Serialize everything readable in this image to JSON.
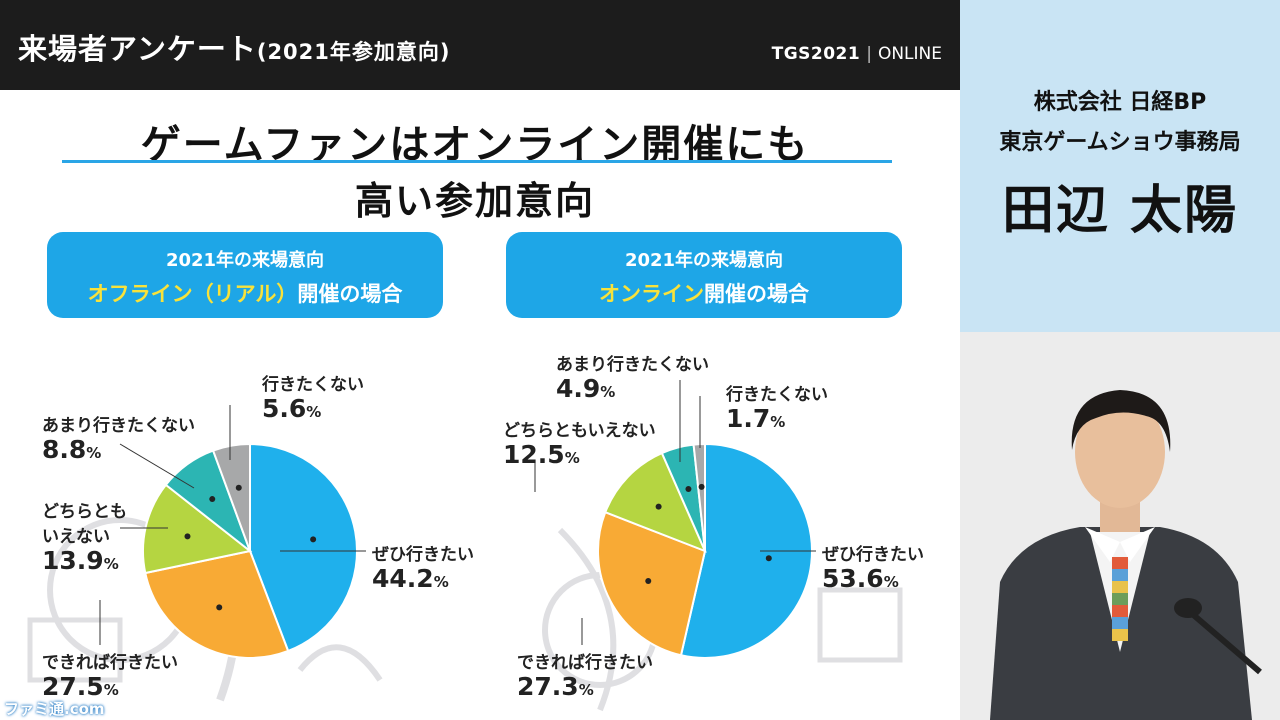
{
  "header": {
    "title": "来場者アンケート",
    "subtitle": "(2021年参加意向)",
    "brand": "TGS2021",
    "separator": "|",
    "brand_suffix": "ONLINE"
  },
  "headline": {
    "line1": "ゲームファンはオンライン開催にも",
    "line2": "高い参加意向"
  },
  "badges": {
    "left": {
      "line1": "2021年の来場意向",
      "line2_highlight": "オフライン（リアル）",
      "line2_rest": "開催の場合"
    },
    "right": {
      "line1": "2021年の来場意向",
      "line2_highlight": "オンライン",
      "line2_rest": "開催の場合"
    }
  },
  "colors": {
    "header_bg": "#1c1c1c",
    "accent_blue": "#1ea6e7",
    "highlight_yellow": "#f9e23a",
    "slice_blue": "#1fb0ec",
    "slice_orange": "#f8aa35",
    "slice_lime": "#b5d541",
    "slice_teal": "#2cb5b3",
    "slice_gray": "#a7a8a9",
    "nameplate_bg": "#c9e4f4"
  },
  "chart_data": [
    {
      "type": "pie",
      "title": "2021年の来場意向 オフライン（リアル）開催の場合",
      "slices": [
        {
          "label": "ぜひ行きたい",
          "value": 44.2,
          "display": "44.2",
          "color": "#1fb0ec"
        },
        {
          "label": "できれば行きたい",
          "value": 27.5,
          "display": "27.5",
          "color": "#f8aa35"
        },
        {
          "label": "どちらとも いえない",
          "label_lines": [
            "どちらとも",
            "いえない"
          ],
          "value": 13.9,
          "display": "13.9",
          "color": "#b5d541"
        },
        {
          "label": "あまり行きたくない",
          "value": 8.8,
          "display": "8.8",
          "color": "#2cb5b3"
        },
        {
          "label": "行きたくない",
          "value": 5.6,
          "display": "5.6",
          "color": "#a7a8a9"
        }
      ],
      "unit": "%"
    },
    {
      "type": "pie",
      "title": "2021年の来場意向 オンライン開催の場合",
      "slices": [
        {
          "label": "ぜひ行きたい",
          "value": 53.6,
          "display": "53.6",
          "color": "#1fb0ec"
        },
        {
          "label": "できれば行きたい",
          "value": 27.3,
          "display": "27.3",
          "color": "#f8aa35"
        },
        {
          "label": "どちらともいえない",
          "value": 12.5,
          "display": "12.5",
          "color": "#b5d541"
        },
        {
          "label": "あまり行きたくない",
          "value": 4.9,
          "display": "4.9",
          "color": "#2cb5b3"
        },
        {
          "label": "行きたくない",
          "value": 1.7,
          "display": "1.7",
          "color": "#a7a8a9"
        }
      ],
      "unit": "%"
    }
  ],
  "speaker": {
    "company": "株式会社 日経BP",
    "department": "東京ゲームショウ事務局",
    "name": "田辺 太陽"
  },
  "watermark": "ファミ通.com"
}
